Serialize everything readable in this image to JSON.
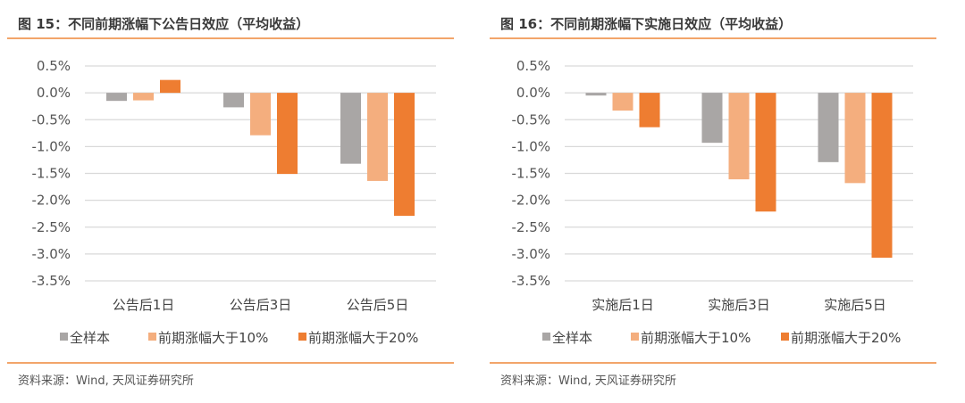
{
  "chart_data": [
    {
      "type": "bar",
      "title": "图 15：不同前期涨幅下公告日效应（平均收益）",
      "categories": [
        "公告后1日",
        "公告后3日",
        "公告后5日"
      ],
      "series": [
        {
          "name": "全样本",
          "color": "#a9a6a5",
          "values": [
            -0.15,
            -0.27,
            -1.32
          ]
        },
        {
          "name": "前期涨幅大于10%",
          "color": "#f4ae7e",
          "values": [
            -0.14,
            -0.79,
            -1.64
          ]
        },
        {
          "name": "前期涨幅大于20%",
          "color": "#ee7d31",
          "values": [
            0.24,
            -1.51,
            -2.29
          ]
        }
      ],
      "ylim": [
        -3.5,
        0.5
      ],
      "yticks": [
        "0.5%",
        "0.0%",
        "-0.5%",
        "-1.0%",
        "-1.5%",
        "-2.0%",
        "-2.5%",
        "-3.0%",
        "-3.5%"
      ],
      "unit": "%",
      "grid": true,
      "legend": "bottom",
      "source": "资料来源：Wind, 天风证券研究所"
    },
    {
      "type": "bar",
      "title": "图 16：不同前期涨幅下实施日效应（平均收益）",
      "categories": [
        "实施后1日",
        "实施后3日",
        "实施后5日"
      ],
      "series": [
        {
          "name": "全样本",
          "color": "#a9a6a5",
          "values": [
            -0.05,
            -0.93,
            -1.29
          ]
        },
        {
          "name": "前期涨幅大于10%",
          "color": "#f4ae7e",
          "values": [
            -0.33,
            -1.61,
            -1.68
          ]
        },
        {
          "name": "前期涨幅大于20%",
          "color": "#ee7d31",
          "values": [
            -0.64,
            -2.21,
            -3.07
          ]
        }
      ],
      "ylim": [
        -3.5,
        0.5
      ],
      "yticks": [
        "0.5%",
        "0.0%",
        "-0.5%",
        "-1.0%",
        "-1.5%",
        "-2.0%",
        "-2.5%",
        "-3.0%",
        "-3.5%"
      ],
      "unit": "%",
      "grid": true,
      "legend": "bottom",
      "source": "资料来源：Wind, 天风证券研究所"
    }
  ],
  "accent_color": "#f2a56a"
}
